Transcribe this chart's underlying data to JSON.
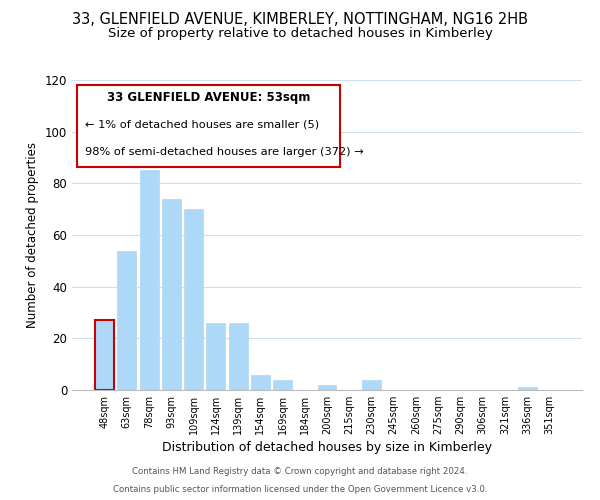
{
  "title": "33, GLENFIELD AVENUE, KIMBERLEY, NOTTINGHAM, NG16 2HB",
  "subtitle": "Size of property relative to detached houses in Kimberley",
  "xlabel": "Distribution of detached houses by size in Kimberley",
  "ylabel": "Number of detached properties",
  "bar_labels": [
    "48sqm",
    "63sqm",
    "78sqm",
    "93sqm",
    "109sqm",
    "124sqm",
    "139sqm",
    "154sqm",
    "169sqm",
    "184sqm",
    "200sqm",
    "215sqm",
    "230sqm",
    "245sqm",
    "260sqm",
    "275sqm",
    "290sqm",
    "306sqm",
    "321sqm",
    "336sqm",
    "351sqm"
  ],
  "bar_values": [
    27,
    54,
    85,
    74,
    70,
    26,
    26,
    6,
    4,
    0,
    2,
    0,
    4,
    0,
    0,
    0,
    0,
    0,
    0,
    1,
    0
  ],
  "bar_color": "#add8f7",
  "highlight_bar_index": 0,
  "highlight_bar_edge_color": "#cc0000",
  "ylim": [
    0,
    120
  ],
  "yticks": [
    0,
    20,
    40,
    60,
    80,
    100,
    120
  ],
  "annotation_title": "33 GLENFIELD AVENUE: 53sqm",
  "annotation_line1": "← 1% of detached houses are smaller (5)",
  "annotation_line2": "98% of semi-detached houses are larger (372) →",
  "annotation_box_edge": "#cc0000",
  "footer_line1": "Contains HM Land Registry data © Crown copyright and database right 2024.",
  "footer_line2": "Contains public sector information licensed under the Open Government Licence v3.0.",
  "background_color": "#ffffff",
  "grid_color": "#cce0f0",
  "title_fontsize": 10.5,
  "subtitle_fontsize": 9.5,
  "xlabel_fontsize": 9,
  "ylabel_fontsize": 8.5
}
